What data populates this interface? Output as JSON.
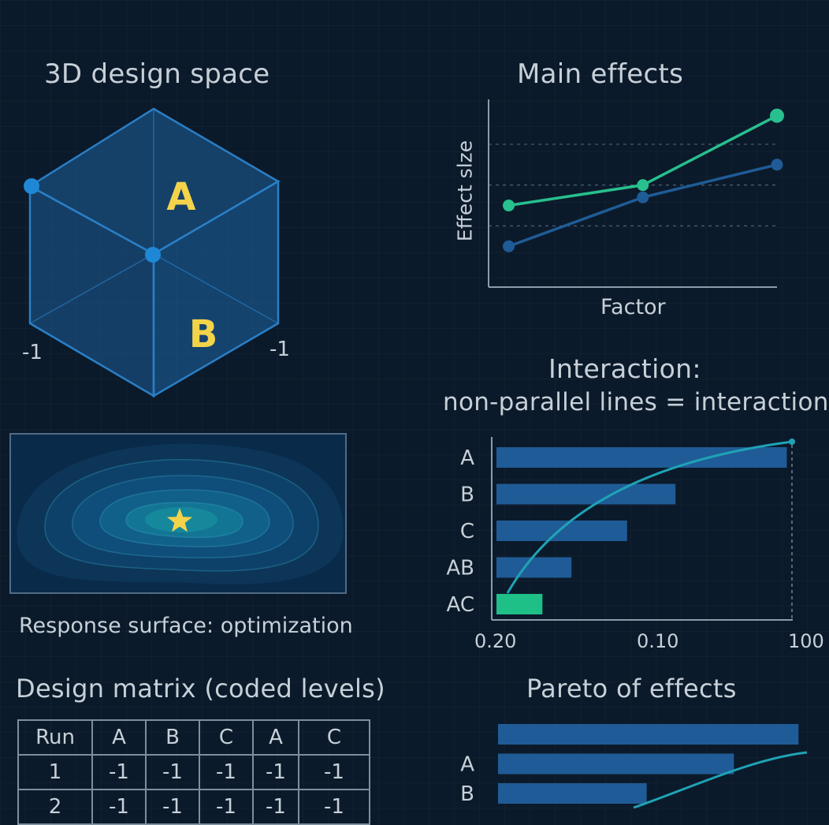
{
  "panels": {
    "design_space": {
      "title": "3D design space",
      "face_labels": [
        "A",
        "B"
      ],
      "corner_labels": [
        "-1",
        "-1"
      ]
    },
    "response_surface": {
      "caption": "Response surface: optimization",
      "optimum_marker": "star-icon"
    },
    "design_matrix": {
      "title": "Design matrix (coded levels)",
      "headers": [
        "Run",
        "A",
        "B",
        "C",
        "A",
        "C"
      ],
      "rows": [
        [
          "1",
          "-1",
          "-1",
          "-1",
          "-1",
          "-1"
        ],
        [
          "2",
          "-1",
          "-1",
          "-1",
          "-1",
          "-1"
        ]
      ]
    },
    "main_effects": {
      "title": "Main effects"
    },
    "interaction": {
      "title_line1": "Interaction:",
      "title_line2": "non-parallel lines = interaction"
    },
    "pareto": {
      "title": "Pareto of effects"
    }
  },
  "colors": {
    "background": "#0b1a2a",
    "bar": "#1f5c97",
    "highlight_bar": "#1fbf88",
    "line_green": "#27c08e",
    "line_blue": "#1f5c97",
    "curve": "#1fa3b6",
    "star": "#f3d34a",
    "face_label": "#f3d34a"
  },
  "chart_data": [
    {
      "type": "line",
      "title": "Main effects",
      "xlabel": "Factor",
      "ylabel": "Effect slze",
      "x": [
        1,
        2,
        3
      ],
      "series": [
        {
          "values": [
            2.0,
            2.5,
            4.2
          ]
        },
        {
          "values": [
            1.0,
            2.2,
            3.0
          ]
        }
      ],
      "ylim": [
        0,
        4.6
      ],
      "grid": true
    },
    {
      "type": "bar",
      "orientation": "horizontal",
      "categories": [
        "A",
        "B",
        "C",
        "AB",
        "AC"
      ],
      "values": [
        0.6,
        0.37,
        0.27,
        0.155,
        0.095
      ],
      "highlight": "AC",
      "x_tick_labels": [
        "0.20",
        "0.10",
        "100"
      ],
      "cumulative_curve": true
    },
    {
      "type": "bar",
      "orientation": "horizontal",
      "title": "Pareto of effects",
      "categories": [
        "",
        "A",
        "B"
      ],
      "values": [
        0.93,
        0.73,
        0.46
      ],
      "cumulative_curve": true
    }
  ]
}
